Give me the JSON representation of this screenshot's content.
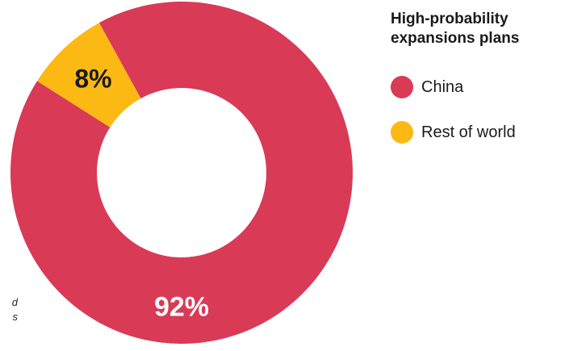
{
  "chart_data": {
    "type": "pie",
    "subtype": "donut",
    "title": "High-probability expansions plans",
    "slices": [
      {
        "label": "China",
        "value": 92,
        "display": "92%",
        "color": "#d93a56",
        "label_color": "#ffffff"
      },
      {
        "label": "Rest of world",
        "value": 8,
        "display": "8%",
        "color": "#fdb913",
        "label_color": "#1a1a1a"
      }
    ],
    "legend_position": "right"
  },
  "side_note": {
    "line1": "d",
    "line2": "s"
  }
}
